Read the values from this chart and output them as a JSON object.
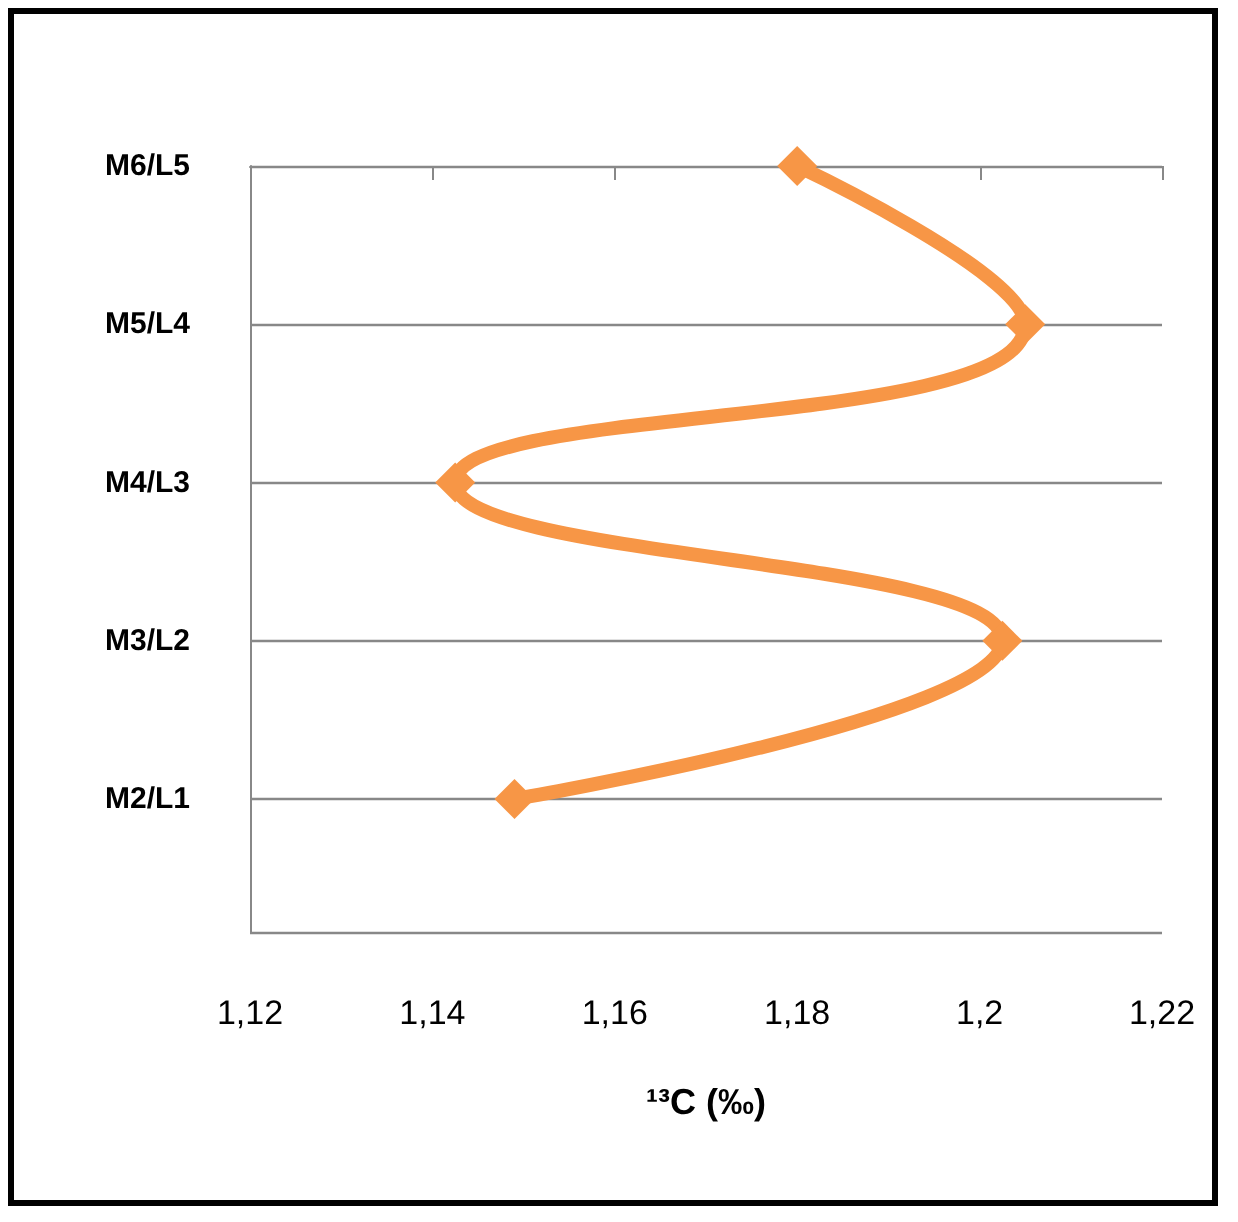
{
  "chart_data": {
    "type": "line",
    "orientation": "horizontal",
    "xlabel": "¹³C (‰)",
    "categories": [
      "M6/L5",
      "M5/L4",
      "M4/L3",
      "M3/L2",
      "M2/L1"
    ],
    "series": [
      {
        "color": "#f79646",
        "values": [
          1.18,
          1.205,
          1.1425,
          1.2025,
          1.149
        ]
      }
    ],
    "xlim": [
      1.12,
      1.22
    ],
    "xticks": [
      {
        "value": 1.12,
        "label": "1,12"
      },
      {
        "value": 1.14,
        "label": "1,14"
      },
      {
        "value": 1.16,
        "label": "1,16"
      },
      {
        "value": 1.18,
        "label": "1,18"
      },
      {
        "value": 1.2,
        "label": "1,2"
      },
      {
        "value": 1.22,
        "label": "1,22"
      }
    ],
    "grid": "y",
    "marker": "diamond",
    "line_style": "solid"
  }
}
